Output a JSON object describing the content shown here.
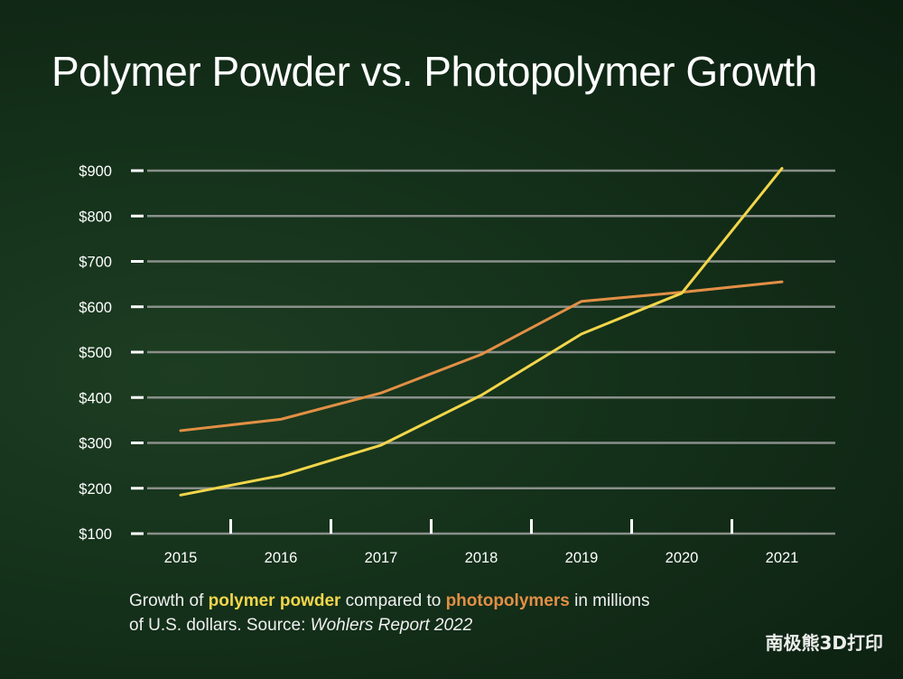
{
  "title": "Polymer Powder vs. Photopolymer Growth",
  "caption": {
    "prefix": "Growth of ",
    "highlight1": "polymer powder",
    "middle": " compared to ",
    "highlight2": "photopolymers",
    "suffix": " in millions",
    "line2": "of U.S. dollars.  Source: ",
    "source": "Wohlers Report 2022"
  },
  "watermark": "南极熊3D打印",
  "colors": {
    "polymer_powder": "#f2d64b",
    "photopolymers": "#e28f45",
    "gridline": "#8a8f8a",
    "background": "#14301a"
  },
  "chart_data": {
    "type": "line",
    "categories": [
      "2015",
      "2016",
      "2017",
      "2018",
      "2019",
      "2020",
      "2021"
    ],
    "series": [
      {
        "name": "polymer powder",
        "values": [
          185,
          228,
          295,
          405,
          540,
          630,
          905
        ]
      },
      {
        "name": "photopolymers",
        "values": [
          327,
          352,
          410,
          495,
          612,
          632,
          655
        ]
      }
    ],
    "ylim": [
      100,
      900
    ],
    "yticks": [
      100,
      200,
      300,
      400,
      500,
      600,
      700,
      800,
      900
    ],
    "ytick_labels": [
      "$100",
      "$200",
      "$300",
      "$400",
      "$500",
      "$600",
      "$700",
      "$800",
      "$900"
    ],
    "grid": true,
    "legend": "caption"
  }
}
